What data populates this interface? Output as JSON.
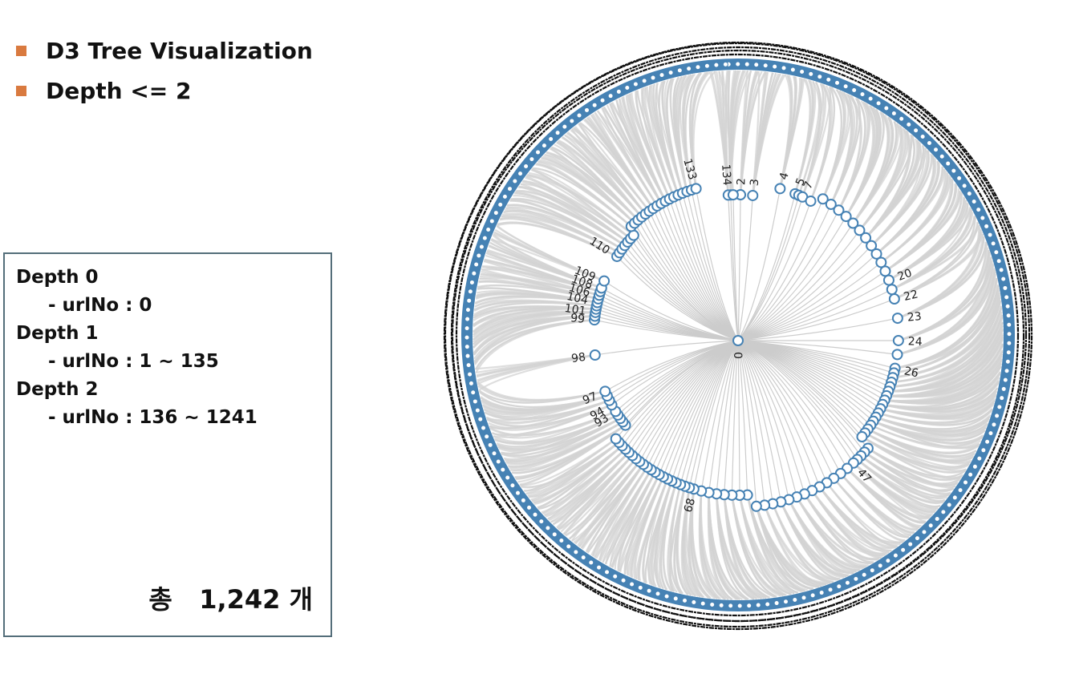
{
  "bullets": [
    {
      "label": "D3 Tree Visualization"
    },
    {
      "label": "Depth <= 2"
    }
  ],
  "info": {
    "lines": [
      {
        "text": "Depth 0",
        "indent": false
      },
      {
        "text": "- urlNo : 0",
        "indent": true
      },
      {
        "text": "Depth 1",
        "indent": false
      },
      {
        "text": "- urlNo : 1 ~ 135",
        "indent": true
      },
      {
        "text": "Depth 2",
        "indent": false
      },
      {
        "text": "- urlNo : 136 ~ 1241",
        "indent": true
      }
    ],
    "total": "총   1,242 개"
  },
  "colors": {
    "bullet": "#d97a3f",
    "node_stroke": "#4682b4",
    "ring": "#4682b4",
    "link": "#cccccc",
    "link_fill": "#d3d3d3",
    "box_border": "#546e7a"
  },
  "tree": {
    "root_label": "0",
    "depth1_visible_labels": [
      "2",
      "3",
      "4",
      "5",
      "7",
      "20",
      "22",
      "23",
      "24",
      "26",
      "47",
      "68",
      "93",
      "94",
      "97",
      "98",
      "99",
      "101",
      "104",
      "106",
      "108",
      "109",
      "110",
      "133",
      "134"
    ],
    "depth1_count": 135,
    "depth2_count": 1106
  }
}
